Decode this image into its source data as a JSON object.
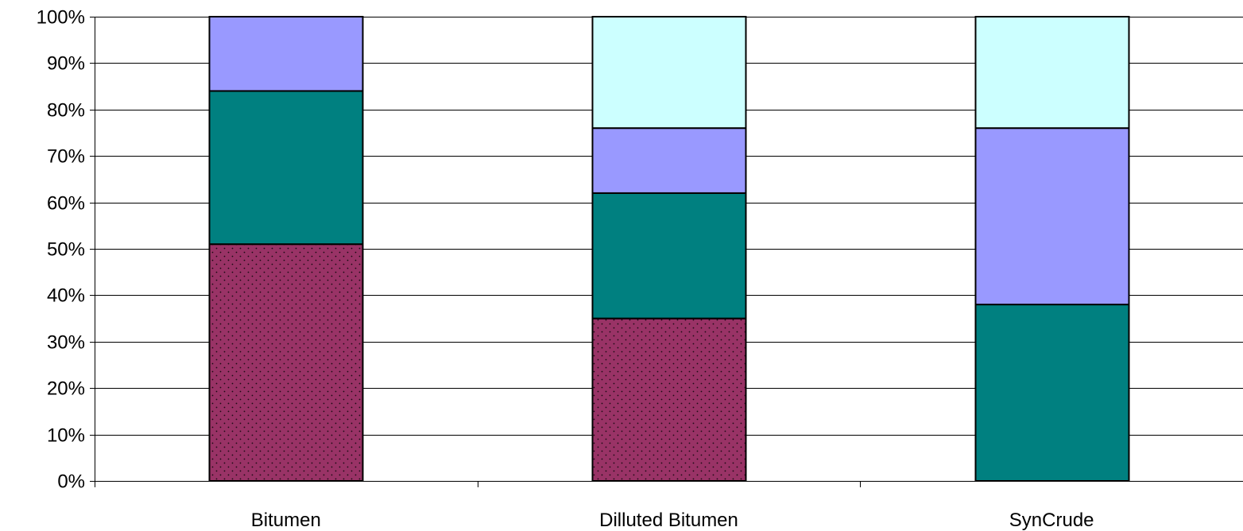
{
  "chart_data": {
    "type": "bar",
    "stacked": true,
    "percent_stacked": true,
    "title": "",
    "xlabel": "",
    "ylabel": "",
    "ylim": [
      0,
      100
    ],
    "y_ticks": [
      "0%",
      "10%",
      "20%",
      "30%",
      "40%",
      "50%",
      "60%",
      "70%",
      "80%",
      "90%",
      "100%"
    ],
    "grid": "horizontal",
    "legend": "none",
    "categories": [
      "Bitumen",
      "Dilluted Bitumen",
      "SynCrude"
    ],
    "series": [
      {
        "color": "#993366",
        "pattern": "dotted",
        "values": [
          51,
          35,
          0
        ]
      },
      {
        "color": "#008080",
        "pattern": "solid",
        "values": [
          33,
          27,
          38
        ]
      },
      {
        "color": "#9999ff",
        "pattern": "solid",
        "values": [
          16,
          14,
          38
        ]
      },
      {
        "color": "#ccffff",
        "pattern": "solid",
        "values": [
          0,
          24,
          24
        ]
      }
    ]
  }
}
